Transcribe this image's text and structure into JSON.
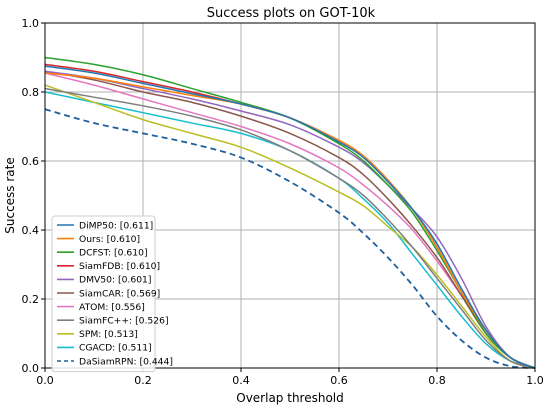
{
  "chart_data": {
    "type": "line",
    "title": "Success plots on GOT-10k",
    "xlabel": "Overlap threshold",
    "ylabel": "Success rate",
    "xlim": [
      0,
      1
    ],
    "ylim": [
      0,
      1
    ],
    "xticks": [
      "0.0",
      "0.2",
      "0.4",
      "0.6",
      "0.8",
      "1.0"
    ],
    "yticks": [
      "0.0",
      "0.2",
      "0.4",
      "0.6",
      "0.8",
      "1.0"
    ],
    "grid": true,
    "legend_position": "lower-left",
    "x": [
      0,
      0.1,
      0.2,
      0.3,
      0.4,
      0.5,
      0.6,
      0.65,
      0.7,
      0.75,
      0.8,
      0.85,
      0.9,
      0.95,
      1.0
    ],
    "series": [
      {
        "name": "DiMP50: [0.611]",
        "color": "#1f77b4",
        "dash": false,
        "values": [
          0.875,
          0.855,
          0.825,
          0.795,
          0.765,
          0.725,
          0.655,
          0.61,
          0.54,
          0.46,
          0.36,
          0.23,
          0.11,
          0.03,
          0.0
        ]
      },
      {
        "name": "Ours: [0.610]",
        "color": "#ff7f0e",
        "dash": false,
        "values": [
          0.855,
          0.84,
          0.815,
          0.79,
          0.765,
          0.725,
          0.66,
          0.615,
          0.545,
          0.46,
          0.35,
          0.22,
          0.11,
          0.03,
          0.0
        ]
      },
      {
        "name": "DCFST: [0.610]",
        "color": "#2ca02c",
        "dash": false,
        "values": [
          0.9,
          0.88,
          0.85,
          0.81,
          0.77,
          0.725,
          0.65,
          0.6,
          0.53,
          0.45,
          0.34,
          0.22,
          0.1,
          0.03,
          0.0
        ]
      },
      {
        "name": "SiamFDB: [0.610]",
        "color": "#d62728",
        "dash": false,
        "values": [
          0.88,
          0.86,
          0.83,
          0.8,
          0.765,
          0.725,
          0.655,
          0.61,
          0.54,
          0.46,
          0.35,
          0.22,
          0.1,
          0.03,
          0.0
        ]
      },
      {
        "name": "DMV50: [0.601]",
        "color": "#9467bd",
        "dash": false,
        "values": [
          0.86,
          0.84,
          0.81,
          0.78,
          0.745,
          0.705,
          0.64,
          0.595,
          0.53,
          0.46,
          0.38,
          0.26,
          0.12,
          0.03,
          0.0
        ]
      },
      {
        "name": "SiamCAR: [0.569]",
        "color": "#8c564b",
        "dash": false,
        "values": [
          0.86,
          0.835,
          0.8,
          0.77,
          0.73,
          0.68,
          0.61,
          0.56,
          0.49,
          0.41,
          0.32,
          0.21,
          0.1,
          0.03,
          0.0
        ]
      },
      {
        "name": "ATOM: [0.556]",
        "color": "#e377c2",
        "dash": false,
        "values": [
          0.855,
          0.82,
          0.78,
          0.74,
          0.7,
          0.65,
          0.58,
          0.53,
          0.47,
          0.4,
          0.31,
          0.21,
          0.11,
          0.03,
          0.0
        ]
      },
      {
        "name": "SiamFC++: [0.526]",
        "color": "#7f7f7f",
        "dash": false,
        "values": [
          0.81,
          0.785,
          0.76,
          0.73,
          0.69,
          0.63,
          0.55,
          0.5,
          0.43,
          0.35,
          0.26,
          0.17,
          0.08,
          0.02,
          0.0
        ]
      },
      {
        "name": "SPM: [0.513]",
        "color": "#bcbd22",
        "dash": false,
        "values": [
          0.82,
          0.77,
          0.72,
          0.68,
          0.64,
          0.58,
          0.51,
          0.47,
          0.41,
          0.35,
          0.27,
          0.18,
          0.09,
          0.02,
          0.0
        ]
      },
      {
        "name": "CGACD: [0.511]",
        "color": "#17becf",
        "dash": false,
        "values": [
          0.8,
          0.77,
          0.74,
          0.71,
          0.68,
          0.63,
          0.55,
          0.49,
          0.42,
          0.33,
          0.24,
          0.15,
          0.07,
          0.02,
          0.0
        ]
      },
      {
        "name": "DaSiamRPN: [0.444]",
        "color": "#1f5f9e",
        "dash": true,
        "values": [
          0.75,
          0.71,
          0.68,
          0.65,
          0.61,
          0.54,
          0.45,
          0.39,
          0.32,
          0.24,
          0.15,
          0.08,
          0.03,
          0.005,
          0.0
        ]
      }
    ]
  }
}
